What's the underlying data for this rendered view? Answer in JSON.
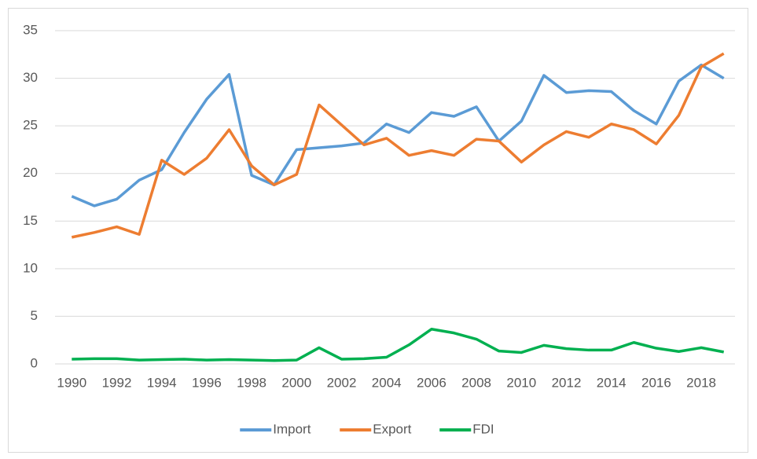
{
  "chart_data": {
    "type": "line",
    "categories": [
      "1990",
      null,
      "1992",
      null,
      "1994",
      null,
      "1996",
      null,
      "1998",
      null,
      "2000",
      null,
      "2002",
      null,
      "2004",
      null,
      "2006",
      null,
      "2008",
      null,
      "2010",
      null,
      "2012",
      null,
      "2014",
      null,
      "2016",
      null,
      "2018",
      null
    ],
    "series": [
      {
        "name": "Import",
        "color": "#5b9bd5",
        "values": [
          17.6,
          16.6,
          17.3,
          19.3,
          20.4,
          24.3,
          27.8,
          30.4,
          19.8,
          18.8,
          22.5,
          22.7,
          22.9,
          23.2,
          25.2,
          24.3,
          26.4,
          26.0,
          27.0,
          23.4,
          25.5,
          30.3,
          28.5,
          28.7,
          28.6,
          26.6,
          25.2,
          29.7,
          31.4,
          30.0
        ]
      },
      {
        "name": "Export",
        "color": "#ed7d31",
        "values": [
          13.3,
          13.8,
          14.4,
          13.6,
          21.4,
          19.9,
          21.6,
          24.6,
          20.8,
          18.8,
          19.9,
          27.2,
          25.1,
          23.0,
          23.7,
          21.9,
          22.4,
          21.9,
          23.6,
          23.4,
          21.2,
          23.0,
          24.4,
          23.8,
          25.2,
          24.6,
          23.1,
          26.1,
          31.2,
          32.6
        ]
      },
      {
        "name": "FDI",
        "color": "#00b050",
        "values": [
          0.5,
          0.55,
          0.55,
          0.4,
          0.45,
          0.5,
          0.4,
          0.45,
          0.4,
          0.35,
          0.4,
          1.7,
          0.5,
          0.55,
          0.7,
          2.0,
          3.65,
          3.25,
          2.6,
          1.35,
          1.2,
          1.95,
          1.6,
          1.45,
          1.45,
          2.25,
          1.65,
          1.3,
          1.7,
          1.25
        ]
      }
    ],
    "ylim": [
      0,
      35
    ],
    "yticks": [
      0,
      5,
      10,
      15,
      20,
      25,
      30,
      35
    ],
    "grid": true,
    "legend": "bottom"
  }
}
